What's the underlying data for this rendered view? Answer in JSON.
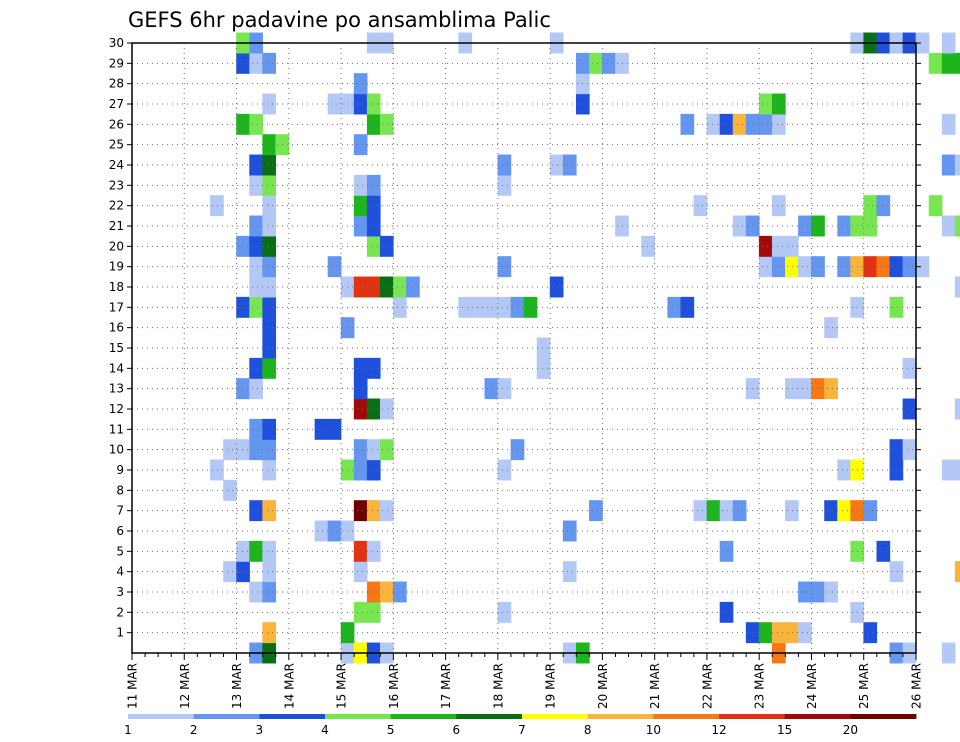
{
  "chart_data": {
    "type": "heatmap",
    "title": "GEFS 6hr padavine po ansamblima Palic",
    "x_tick_labels": [
      "11 MAR",
      "12 MAR",
      "13 MAR",
      "14 MAR",
      "15 MAR",
      "16 MAR",
      "17 MAR",
      "18 MAR",
      "19 MAR",
      "20 MAR",
      "21 MAR",
      "22 MAR",
      "23 MAR",
      "24 MAR",
      "25 MAR",
      "26 MAR"
    ],
    "y_tick_labels": [
      "1",
      "2",
      "3",
      "4",
      "5",
      "6",
      "7",
      "8",
      "9",
      "10",
      "11",
      "12",
      "13",
      "14",
      "15",
      "16",
      "17",
      "18",
      "19",
      "20",
      "21",
      "22",
      "23",
      "24",
      "25",
      "26",
      "27",
      "28",
      "29",
      "30"
    ],
    "x_range": [
      "11 MAR 00Z",
      "26 MAR 00Z"
    ],
    "time_step_hours": 6,
    "y_range": [
      0,
      30
    ],
    "grid": "dotted",
    "colorbar": {
      "position": "bottom",
      "labels": [
        "1",
        "2",
        "3",
        "4",
        "5",
        "6",
        "7",
        "8",
        "10",
        "12",
        "15",
        "20"
      ],
      "colors": [
        "#b4c8f5",
        "#6496f0",
        "#1e50dc",
        "#78e650",
        "#1eb41e",
        "#0a6e14",
        "#ffff00",
        "#fab43c",
        "#f57814",
        "#e13214",
        "#a00a0a",
        "#6e0000"
      ]
    },
    "levels": {
      "1": "#b4c8f5",
      "2": "#6496f0",
      "3": "#1e50dc",
      "4": "#78e650",
      "5": "#1eb41e",
      "6": "#0a6e14",
      "7": "#ffff00",
      "8": "#fab43c",
      "10": "#f57814",
      "12": "#e13214",
      "15": "#a00a0a",
      "20": "#6e0000"
    },
    "member_cells": {
      "30": [
        [
          8,
          4
        ],
        [
          9,
          2
        ],
        [
          18,
          1
        ],
        [
          19,
          1
        ],
        [
          25,
          1
        ],
        [
          32,
          1
        ],
        [
          55,
          1
        ],
        [
          56,
          6
        ],
        [
          57,
          3
        ],
        [
          58,
          1
        ],
        [
          59,
          3
        ],
        [
          60,
          1
        ],
        [
          62,
          1
        ]
      ],
      "29": [
        [
          8,
          3
        ],
        [
          9,
          1
        ],
        [
          10,
          2
        ],
        [
          34,
          2
        ],
        [
          35,
          4
        ],
        [
          36,
          2
        ],
        [
          37,
          1
        ],
        [
          61,
          4
        ],
        [
          62,
          5
        ],
        [
          63,
          5
        ]
      ],
      "28": [
        [
          17,
          2
        ],
        [
          34,
          1
        ],
        [
          65,
          5
        ],
        [
          66,
          2
        ],
        [
          68,
          3
        ],
        [
          69,
          1
        ]
      ],
      "27": [
        [
          10,
          1
        ],
        [
          15,
          1
        ],
        [
          16,
          1
        ],
        [
          17,
          3
        ],
        [
          18,
          4
        ],
        [
          34,
          3
        ],
        [
          48,
          4
        ],
        [
          49,
          5
        ],
        [
          64,
          2
        ],
        [
          65,
          4
        ]
      ],
      "26": [
        [
          8,
          5
        ],
        [
          9,
          4
        ],
        [
          18,
          5
        ],
        [
          19,
          4
        ],
        [
          42,
          2
        ],
        [
          44,
          1
        ],
        [
          45,
          3
        ],
        [
          46,
          8
        ],
        [
          47,
          2
        ],
        [
          48,
          2
        ],
        [
          49,
          1
        ],
        [
          62,
          1
        ]
      ],
      "25": [
        [
          10,
          5
        ],
        [
          11,
          4
        ],
        [
          17,
          2
        ]
      ],
      "24": [
        [
          9,
          3
        ],
        [
          10,
          6
        ],
        [
          28,
          2
        ],
        [
          32,
          1
        ],
        [
          33,
          2
        ],
        [
          62,
          2
        ],
        [
          63,
          1
        ]
      ],
      "23": [
        [
          9,
          1
        ],
        [
          10,
          4
        ],
        [
          17,
          1
        ],
        [
          18,
          2
        ],
        [
          28,
          1
        ],
        [
          64,
          5
        ],
        [
          65,
          2
        ],
        [
          67,
          1
        ]
      ],
      "22": [
        [
          6,
          1
        ],
        [
          10,
          1
        ],
        [
          17,
          5
        ],
        [
          18,
          3
        ],
        [
          43,
          1
        ],
        [
          49,
          1
        ],
        [
          56,
          4
        ],
        [
          57,
          2
        ],
        [
          61,
          4
        ]
      ],
      "21": [
        [
          9,
          2
        ],
        [
          10,
          1
        ],
        [
          17,
          2
        ],
        [
          18,
          3
        ],
        [
          37,
          1
        ],
        [
          46,
          1
        ],
        [
          47,
          2
        ],
        [
          51,
          2
        ],
        [
          52,
          5
        ],
        [
          54,
          2
        ],
        [
          55,
          4
        ],
        [
          56,
          4
        ],
        [
          62,
          1
        ],
        [
          63,
          4
        ]
      ],
      "20": [
        [
          8,
          2
        ],
        [
          9,
          3
        ],
        [
          10,
          6
        ],
        [
          18,
          4
        ],
        [
          19,
          3
        ],
        [
          39,
          1
        ],
        [
          48,
          15
        ],
        [
          49,
          1
        ],
        [
          50,
          1
        ]
      ],
      "19": [
        [
          9,
          1
        ],
        [
          10,
          2
        ],
        [
          15,
          2
        ],
        [
          28,
          2
        ],
        [
          48,
          1
        ],
        [
          49,
          2
        ],
        [
          50,
          7
        ],
        [
          51,
          1
        ],
        [
          52,
          2
        ],
        [
          54,
          2
        ],
        [
          55,
          8
        ],
        [
          56,
          12
        ],
        [
          57,
          10
        ],
        [
          58,
          3
        ],
        [
          59,
          2
        ],
        [
          60,
          1
        ]
      ],
      "18": [
        [
          9,
          1
        ],
        [
          10,
          1
        ],
        [
          16,
          1
        ],
        [
          17,
          12
        ],
        [
          18,
          12
        ],
        [
          19,
          6
        ],
        [
          20,
          4
        ],
        [
          21,
          2
        ],
        [
          32,
          3
        ],
        [
          63,
          1
        ]
      ],
      "17": [
        [
          8,
          3
        ],
        [
          9,
          4
        ],
        [
          10,
          3
        ],
        [
          20,
          1
        ],
        [
          25,
          1
        ],
        [
          26,
          1
        ],
        [
          27,
          1
        ],
        [
          28,
          1
        ],
        [
          29,
          2
        ],
        [
          30,
          5
        ],
        [
          41,
          2
        ],
        [
          42,
          3
        ],
        [
          55,
          1
        ],
        [
          58,
          4
        ],
        [
          66,
          2
        ],
        [
          67,
          4
        ],
        [
          68,
          2
        ]
      ],
      "16": [
        [
          10,
          3
        ],
        [
          16,
          2
        ],
        [
          53,
          1
        ]
      ],
      "15": [
        [
          10,
          3
        ],
        [
          31,
          1
        ],
        [
          65,
          3
        ],
        [
          66,
          1
        ]
      ],
      "14": [
        [
          9,
          3
        ],
        [
          10,
          5
        ],
        [
          17,
          3
        ],
        [
          18,
          3
        ],
        [
          31,
          1
        ],
        [
          59,
          1
        ]
      ],
      "13": [
        [
          8,
          2
        ],
        [
          9,
          1
        ],
        [
          17,
          3
        ],
        [
          27,
          2
        ],
        [
          28,
          1
        ],
        [
          47,
          1
        ],
        [
          50,
          1
        ],
        [
          51,
          1
        ],
        [
          52,
          10
        ],
        [
          53,
          8
        ]
      ],
      "12": [
        [
          17,
          15
        ],
        [
          18,
          6
        ],
        [
          19,
          1
        ],
        [
          59,
          3
        ],
        [
          63,
          1
        ],
        [
          64,
          1
        ]
      ],
      "11": [
        [
          9,
          2
        ],
        [
          10,
          3
        ],
        [
          14,
          3
        ],
        [
          15,
          3
        ],
        [
          69,
          1
        ]
      ],
      "10": [
        [
          7,
          1
        ],
        [
          8,
          1
        ],
        [
          9,
          2
        ],
        [
          10,
          2
        ],
        [
          17,
          2
        ],
        [
          18,
          1
        ],
        [
          19,
          4
        ],
        [
          29,
          2
        ],
        [
          58,
          3
        ],
        [
          59,
          1
        ]
      ],
      "9": [
        [
          6,
          1
        ],
        [
          10,
          1
        ],
        [
          16,
          4
        ],
        [
          17,
          2
        ],
        [
          18,
          3
        ],
        [
          28,
          1
        ],
        [
          54,
          1
        ],
        [
          55,
          7
        ],
        [
          58,
          3
        ],
        [
          62,
          1
        ],
        [
          63,
          1
        ]
      ],
      "8": [
        [
          7,
          1
        ],
        [
          68,
          3
        ],
        [
          69,
          7
        ]
      ],
      "7": [
        [
          9,
          3
        ],
        [
          10,
          8
        ],
        [
          17,
          20
        ],
        [
          18,
          8
        ],
        [
          19,
          1
        ],
        [
          35,
          2
        ],
        [
          43,
          1
        ],
        [
          44,
          5
        ],
        [
          45,
          1
        ],
        [
          46,
          2
        ],
        [
          50,
          1
        ],
        [
          53,
          3
        ],
        [
          54,
          7
        ],
        [
          55,
          10
        ],
        [
          56,
          2
        ]
      ],
      "6": [
        [
          14,
          1
        ],
        [
          15,
          2
        ],
        [
          16,
          1
        ],
        [
          33,
          2
        ]
      ],
      "5": [
        [
          8,
          1
        ],
        [
          9,
          5
        ],
        [
          10,
          1
        ],
        [
          17,
          12
        ],
        [
          18,
          1
        ],
        [
          45,
          2
        ],
        [
          55,
          4
        ],
        [
          57,
          3
        ]
      ],
      "4": [
        [
          7,
          1
        ],
        [
          8,
          3
        ],
        [
          10,
          1
        ],
        [
          17,
          1
        ],
        [
          33,
          1
        ],
        [
          58,
          1
        ],
        [
          63,
          8
        ],
        [
          64,
          5
        ],
        [
          67,
          1
        ],
        [
          68,
          1
        ],
        [
          69,
          3
        ]
      ],
      "3": [
        [
          9,
          1
        ],
        [
          10,
          2
        ],
        [
          18,
          10
        ],
        [
          19,
          8
        ],
        [
          20,
          2
        ],
        [
          51,
          2
        ],
        [
          52,
          2
        ],
        [
          53,
          1
        ],
        [
          65,
          4
        ],
        [
          66,
          1
        ],
        [
          67,
          5
        ],
        [
          68,
          4
        ],
        [
          69,
          8
        ],
        [
          70,
          6
        ]
      ],
      "2": [
        [
          17,
          4
        ],
        [
          18,
          4
        ],
        [
          28,
          1
        ],
        [
          45,
          3
        ],
        [
          55,
          1
        ]
      ],
      "1": [
        [
          10,
          8
        ],
        [
          16,
          5
        ],
        [
          47,
          3
        ],
        [
          48,
          5
        ],
        [
          49,
          8
        ],
        [
          50,
          8
        ],
        [
          51,
          1
        ],
        [
          56,
          3
        ]
      ],
      "0": [
        [
          9,
          2
        ],
        [
          10,
          6
        ],
        [
          16,
          1
        ],
        [
          17,
          7
        ],
        [
          18,
          3
        ],
        [
          19,
          1
        ],
        [
          33,
          1
        ],
        [
          34,
          5
        ],
        [
          49,
          10
        ],
        [
          58,
          2
        ],
        [
          59,
          1
        ],
        [
          62,
          1
        ]
      ]
    }
  }
}
